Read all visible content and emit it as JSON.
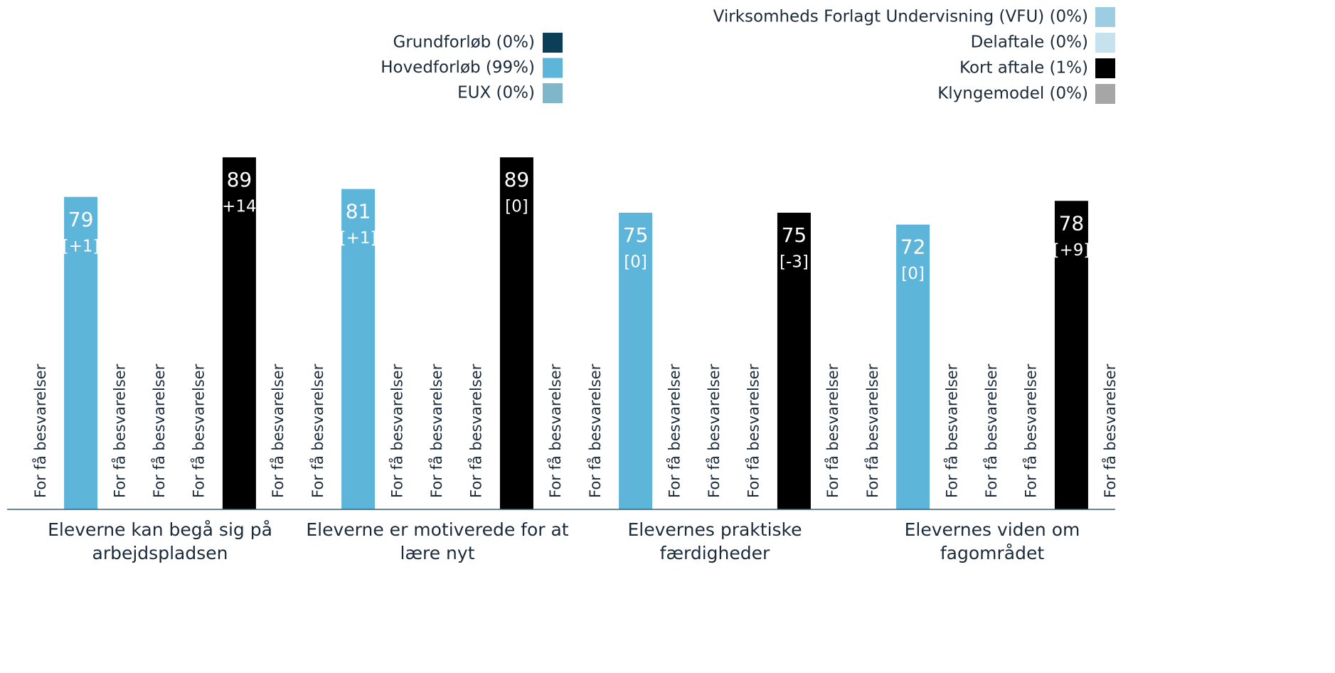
{
  "chart_data": {
    "type": "bar",
    "categories": [
      "Eleverne kan begå sig på arbejdspladsen",
      "Eleverne er motiverede for at lære nyt",
      "Elevernes praktiske færdigheder",
      "Elevernes viden om fagområdet"
    ],
    "missing_label": "For få besvarelser",
    "ylim": [
      0,
      100
    ],
    "series": [
      {
        "name": "Grundforløb (0%)",
        "color": "#0b3f57",
        "values": [
          null,
          null,
          null,
          null
        ]
      },
      {
        "name": "Hovedforløb (99%)",
        "color": "#5eb5da",
        "values": [
          79,
          81,
          75,
          72
        ],
        "change_labels": [
          "[+1]",
          "[+1]",
          "[0]",
          "[0]"
        ]
      },
      {
        "name": "EUX (0%)",
        "color": "#7fb6ca",
        "values": [
          null,
          null,
          null,
          null
        ]
      },
      {
        "name": "Virksomheds Forlagt Undervisning (VFU) (0%)",
        "color": "#9dcde2",
        "values": [
          null,
          null,
          null,
          null
        ]
      },
      {
        "name": "Delaftale (0%)",
        "color": "#c7e2ee",
        "values": [
          null,
          null,
          null,
          null
        ]
      },
      {
        "name": "Kort aftale (1%)",
        "color": "#000000",
        "values": [
          89,
          89,
          75,
          78
        ],
        "change_labels": [
          "[+14]",
          "[0]",
          "[-3]",
          "[+9]"
        ]
      },
      {
        "name": "Klyngemodel (0%)",
        "color": "#a6a6a6",
        "values": [
          null,
          null,
          null,
          null
        ]
      }
    ]
  }
}
